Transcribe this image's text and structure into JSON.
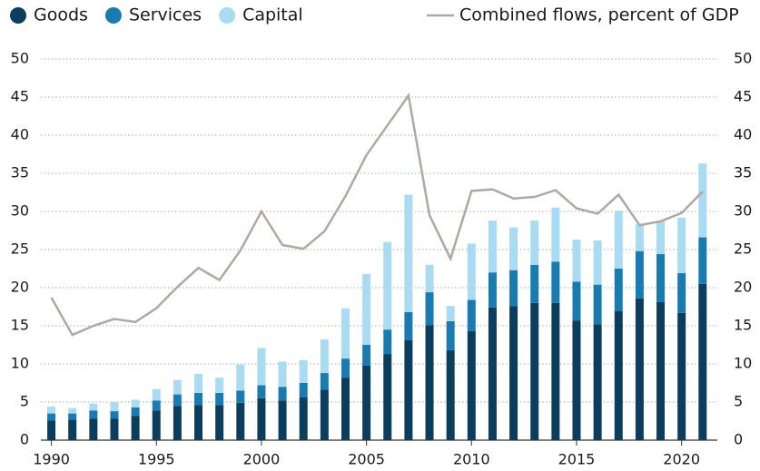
{
  "chart_data": {
    "type": "stacked_bar_line",
    "x": [
      1990,
      1991,
      1992,
      1993,
      1994,
      1995,
      1996,
      1997,
      1998,
      1999,
      2000,
      2001,
      2002,
      2003,
      2004,
      2005,
      2006,
      2007,
      2008,
      2009,
      2010,
      2011,
      2012,
      2013,
      2014,
      2015,
      2016,
      2017,
      2018,
      2019,
      2020,
      2021
    ],
    "series": [
      {
        "name": "Goods",
        "color": "#0b3d5c",
        "values": [
          2.6,
          2.7,
          2.8,
          2.8,
          3.2,
          3.9,
          4.5,
          4.6,
          4.6,
          4.9,
          5.5,
          5.2,
          5.6,
          6.6,
          8.2,
          9.8,
          11.3,
          13.1,
          15.1,
          11.8,
          14.3,
          17.4,
          17.6,
          18.0,
          18.0,
          15.7,
          15.2,
          16.9,
          18.6,
          18.1,
          16.7,
          20.5
        ]
      },
      {
        "name": "Services",
        "color": "#1a7bb0",
        "values": [
          0.9,
          0.8,
          1.1,
          1.0,
          1.1,
          1.3,
          1.5,
          1.6,
          1.6,
          1.6,
          1.7,
          1.8,
          1.9,
          2.2,
          2.5,
          2.7,
          3.2,
          3.7,
          4.3,
          3.8,
          4.1,
          4.6,
          4.7,
          5.0,
          5.4,
          5.1,
          5.2,
          5.6,
          6.2,
          6.3,
          5.2,
          6.1
        ]
      },
      {
        "name": "Capital",
        "color": "#a9dcf2",
        "values": [
          0.9,
          0.7,
          0.9,
          1.2,
          1.0,
          1.5,
          1.9,
          2.5,
          2.0,
          3.4,
          4.9,
          3.3,
          3.0,
          4.4,
          6.6,
          9.3,
          11.5,
          15.4,
          3.6,
          2.0,
          7.4,
          6.8,
          5.6,
          5.8,
          7.1,
          5.5,
          5.8,
          7.6,
          3.5,
          4.4,
          7.3,
          9.7
        ]
      },
      {
        "name": "Combined flows, percent of GDP",
        "color": "#b0a8a4",
        "axis": "y2",
        "type": "line",
        "values": [
          18.7,
          13.8,
          15.0,
          15.9,
          15.5,
          17.3,
          20.1,
          22.6,
          21.0,
          24.9,
          30.0,
          25.6,
          25.1,
          27.4,
          32.0,
          37.4,
          41.3,
          45.2,
          29.5,
          23.8,
          32.7,
          32.9,
          31.7,
          31.9,
          32.8,
          30.4,
          29.7,
          32.2,
          28.2,
          28.7,
          29.8,
          32.6
        ]
      }
    ],
    "xlim": [
      1989.5,
      2021.7
    ],
    "xticks": [
      1990,
      1995,
      2000,
      2005,
      2010,
      2015,
      2020
    ],
    "ylim": [
      0,
      50
    ],
    "yticks": [
      0,
      5,
      10,
      15,
      20,
      25,
      30,
      35,
      40,
      45,
      50
    ],
    "y2lim": [
      0,
      50
    ],
    "y2ticks": [
      0,
      5,
      10,
      15,
      20,
      25,
      30,
      35,
      40,
      45,
      50
    ],
    "grid": true
  }
}
